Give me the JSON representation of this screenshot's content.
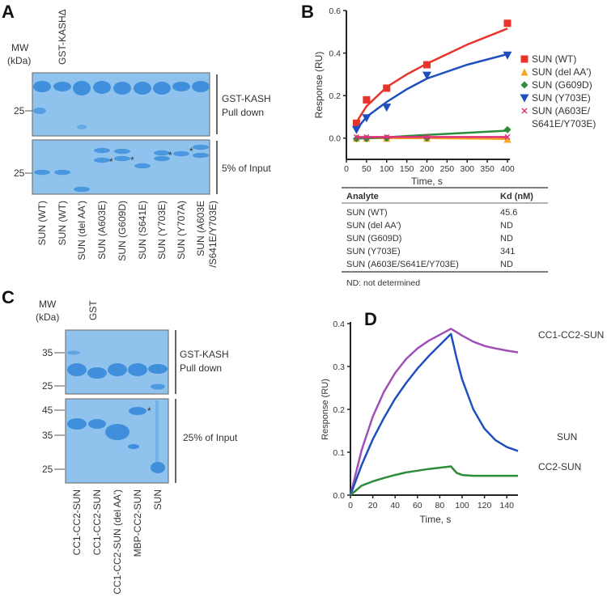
{
  "panel_a": {
    "label": "A",
    "mw_label": [
      "MW",
      "(kDa)"
    ],
    "marker_top": "25",
    "marker_bottom": "25",
    "control_lane": "GST-KASHΔ",
    "gel_top_label": [
      "GST-KASH",
      "Pull down"
    ],
    "gel_bottom_label": "5% of Input",
    "lanes": [
      "SUN (WT)",
      "SUN (WT)",
      "SUN (del AA')",
      "SUN (A603E)",
      "SUN (G609D)",
      "SUN (S641E)",
      "SUN (Y703E)",
      "SUN (Y707A)",
      "SUN (A603E",
      "/S641E/Y703E)"
    ],
    "star": "*",
    "gel_color": "#8fc3ee",
    "band_color": "#3f8fdc"
  },
  "panel_c": {
    "label": "C",
    "mw_label": [
      "MW",
      "(kDa)"
    ],
    "control_lane": "GST",
    "markers_top": [
      "35",
      "25"
    ],
    "markers_bottom": [
      "45",
      "35",
      "25"
    ],
    "gel_top_label": [
      "GST-KASH",
      "Pull down"
    ],
    "gel_bottom_label": "25% of Input",
    "lanes": [
      "CC1-CC2-SUN",
      "CC1-CC2-SUN",
      "CC1-CC2-SUN (del AA')",
      "MBP-CC2-SUN",
      "SUN"
    ],
    "star": "*"
  },
  "panel_b_label": "B",
  "panel_d_label": "D",
  "table": {
    "headers": [
      "Analyte",
      "Kd (nM)"
    ],
    "rows": [
      [
        "SUN (WT)",
        "45.6"
      ],
      [
        "SUN (del AA')",
        "ND"
      ],
      [
        "SUN (G609D)",
        "ND"
      ],
      [
        "SUN (Y703E)",
        "341"
      ],
      [
        "SUN (A603E/S641E/Y703E)",
        "ND"
      ]
    ],
    "footnote": "ND: not determined"
  },
  "chart_data": [
    {
      "type": "scatter",
      "panel": "B",
      "xlabel": "Time, s",
      "ylabel": "Response (RU)",
      "xlim": [
        0,
        400
      ],
      "ylim": [
        -0.1,
        0.6
      ],
      "xticks": [
        0,
        50,
        100,
        150,
        200,
        250,
        300,
        350,
        400
      ],
      "yticks": [
        0.0,
        0.2,
        0.4,
        0.6
      ],
      "ytick_labels": [
        "0.0",
        "0.2",
        "0.4",
        "0.6"
      ],
      "legend_position": "right",
      "x": [
        25,
        50,
        100,
        200,
        400
      ],
      "fit_x": [
        25,
        50,
        100,
        150,
        200,
        300,
        400
      ],
      "series": [
        {
          "name": "SUN (WT)",
          "color": "#e8342a",
          "marker": "square",
          "values": [
            0.07,
            0.18,
            0.235,
            0.345,
            0.54
          ],
          "fit": [
            0.075,
            0.15,
            0.24,
            0.3,
            0.35,
            0.44,
            0.515
          ]
        },
        {
          "name": "SUN (del AA')",
          "color": "#f5a623",
          "marker": "triangle-up",
          "values": [
            0,
            0,
            0,
            0,
            -0.005
          ],
          "fit": [
            0,
            0,
            0,
            0,
            0,
            -0.002,
            -0.004
          ]
        },
        {
          "name": "SUN (G609D)",
          "color": "#2e8b3a",
          "marker": "diamond",
          "values": [
            -0.003,
            -0.003,
            0,
            0,
            0.04
          ],
          "fit": [
            -0.002,
            0,
            0.004,
            0.01,
            0.015,
            0.025,
            0.035
          ]
        },
        {
          "name": "SUN (Y703E)",
          "color": "#1f4fbf",
          "marker": "triangle-down",
          "values": [
            0.04,
            0.095,
            0.145,
            0.295,
            0.39
          ],
          "fit": [
            0.04,
            0.1,
            0.17,
            0.23,
            0.28,
            0.345,
            0.395
          ]
        },
        {
          "name": "SUN (A603E/",
          "name2": "S641E/Y703E)",
          "color": "#e0307a",
          "marker": "x",
          "values": [
            0.005,
            0.005,
            0.005,
            0.005,
            0.005
          ],
          "fit": [
            0.005,
            0.005,
            0.005,
            0.005,
            0.005,
            0.005,
            0.005
          ]
        }
      ]
    },
    {
      "type": "line",
      "panel": "D",
      "xlabel": "Time, s",
      "ylabel": "Response (RU)",
      "xlim": [
        0,
        150
      ],
      "ylim": [
        0,
        0.4
      ],
      "xticks": [
        0,
        20,
        40,
        60,
        80,
        100,
        120,
        140
      ],
      "yticks": [
        0.0,
        0.1,
        0.2,
        0.3,
        0.4
      ],
      "ytick_labels": [
        "0.0",
        "0.1",
        "0.2",
        "0.3",
        "0.4"
      ],
      "x": [
        0,
        10,
        20,
        30,
        40,
        50,
        60,
        70,
        80,
        90,
        95,
        100,
        110,
        120,
        130,
        140,
        150
      ],
      "series": [
        {
          "name": "CC1-CC2-SUN",
          "color": "#a14fb8",
          "values": [
            0,
            0.105,
            0.183,
            0.241,
            0.285,
            0.318,
            0.342,
            0.36,
            0.374,
            0.388,
            0.38,
            0.372,
            0.358,
            0.348,
            0.342,
            0.337,
            0.333
          ]
        },
        {
          "name": "SUN",
          "color": "#1f4fbf",
          "values": [
            0,
            0.07,
            0.13,
            0.18,
            0.225,
            0.262,
            0.295,
            0.324,
            0.35,
            0.376,
            0.32,
            0.27,
            0.2,
            0.155,
            0.128,
            0.112,
            0.103
          ]
        },
        {
          "name": "CC2-SUN",
          "color": "#2e8b3a",
          "values": [
            0,
            0.022,
            0.032,
            0.04,
            0.047,
            0.053,
            0.057,
            0.061,
            0.064,
            0.067,
            0.052,
            0.047,
            0.045,
            0.045,
            0.045,
            0.045,
            0.045
          ]
        }
      ]
    }
  ]
}
